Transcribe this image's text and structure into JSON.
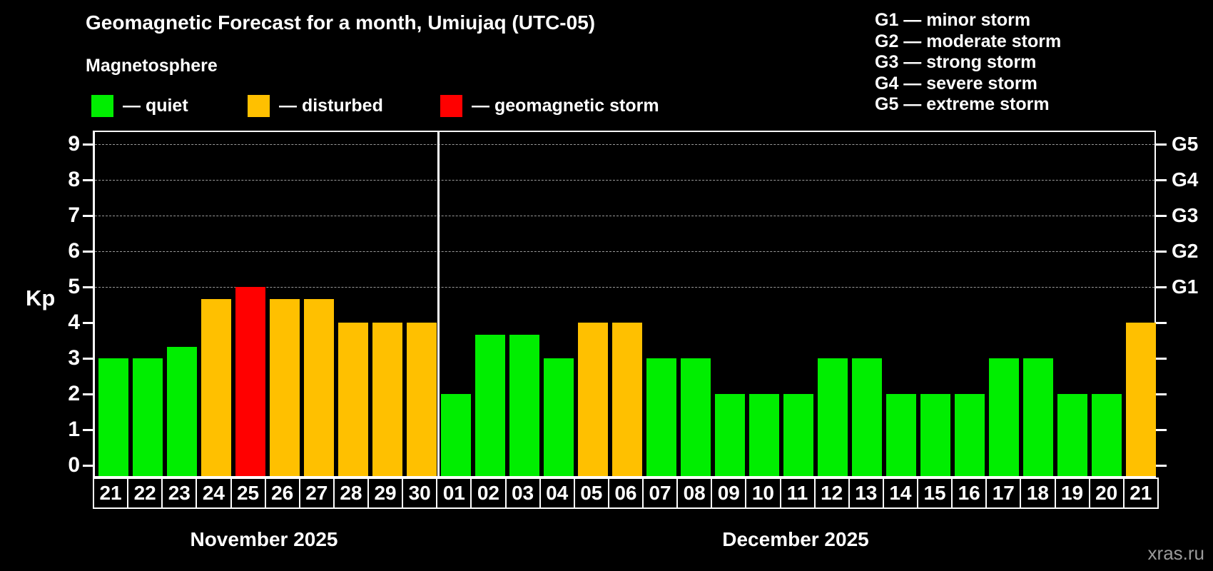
{
  "header": {
    "title": "Geomagnetic Forecast for a month, Umiujaq (UTC-05)",
    "subtitle": "Magnetosphere"
  },
  "legend": {
    "items": [
      {
        "key": "quiet",
        "label": "— quiet",
        "color": "#00ee00"
      },
      {
        "key": "disturbed",
        "label": "— disturbed",
        "color": "#ffc000"
      },
      {
        "key": "storm",
        "label": "— geomagnetic storm",
        "color": "#ff0000"
      }
    ]
  },
  "g_legend": {
    "lines": [
      "G1 — minor storm",
      "G2 — moderate storm",
      "G3 — strong storm",
      "G4 — severe storm",
      "G5 — extreme storm"
    ]
  },
  "axis": {
    "kp_label": "Kp",
    "left_ticks": [
      0,
      1,
      2,
      3,
      4,
      5,
      6,
      7,
      8,
      9
    ],
    "right_labels": [
      {
        "label": "G1",
        "kp": 5
      },
      {
        "label": "G2",
        "kp": 6
      },
      {
        "label": "G3",
        "kp": 7
      },
      {
        "label": "G4",
        "kp": 8
      },
      {
        "label": "G5",
        "kp": 9
      }
    ]
  },
  "months": [
    {
      "name": "November 2025",
      "days": 10
    },
    {
      "name": "December 2025",
      "days": 21
    }
  ],
  "watermark": "xras.ru",
  "chart_data": {
    "type": "bar",
    "title": "Geomagnetic Forecast for a month, Umiujaq (UTC-05)",
    "subtitle": "Magnetosphere",
    "xlabel": "",
    "ylabel": "Kp",
    "ylim": [
      0,
      9
    ],
    "grid": "horizontal dashed lines at Kp 5-9 (G1-G5 levels) only",
    "legend_position": "top-left",
    "gridlines_kp": [
      5,
      6,
      7,
      8,
      9
    ],
    "categories": [
      "Nov 21",
      "Nov 22",
      "Nov 23",
      "Nov 24",
      "Nov 25",
      "Nov 26",
      "Nov 27",
      "Nov 28",
      "Nov 29",
      "Nov 30",
      "Dec 01",
      "Dec 02",
      "Dec 03",
      "Dec 04",
      "Dec 05",
      "Dec 06",
      "Dec 07",
      "Dec 08",
      "Dec 09",
      "Dec 10",
      "Dec 11",
      "Dec 12",
      "Dec 13",
      "Dec 14",
      "Dec 15",
      "Dec 16",
      "Dec 17",
      "Dec 18",
      "Dec 19",
      "Dec 20",
      "Dec 21"
    ],
    "day_labels": [
      "21",
      "22",
      "23",
      "24",
      "25",
      "26",
      "27",
      "28",
      "29",
      "30",
      "01",
      "02",
      "03",
      "04",
      "05",
      "06",
      "07",
      "08",
      "09",
      "10",
      "11",
      "12",
      "13",
      "14",
      "15",
      "16",
      "17",
      "18",
      "19",
      "20",
      "21"
    ],
    "values": [
      3,
      3,
      3.33,
      4.67,
      5,
      4.67,
      4.67,
      4,
      4,
      4,
      2,
      3.67,
      3.67,
      3,
      4,
      4,
      3,
      3,
      2,
      2,
      2,
      3,
      3,
      2,
      2,
      2,
      3,
      3,
      2,
      2,
      4
    ],
    "status": [
      "quiet",
      "quiet",
      "quiet",
      "disturbed",
      "storm",
      "disturbed",
      "disturbed",
      "disturbed",
      "disturbed",
      "disturbed",
      "quiet",
      "quiet",
      "quiet",
      "quiet",
      "disturbed",
      "disturbed",
      "quiet",
      "quiet",
      "quiet",
      "quiet",
      "quiet",
      "quiet",
      "quiet",
      "quiet",
      "quiet",
      "quiet",
      "quiet",
      "quiet",
      "quiet",
      "quiet",
      "disturbed"
    ],
    "colors": {
      "quiet": "#00ee00",
      "disturbed": "#ffc000",
      "storm": "#ff0000"
    }
  }
}
